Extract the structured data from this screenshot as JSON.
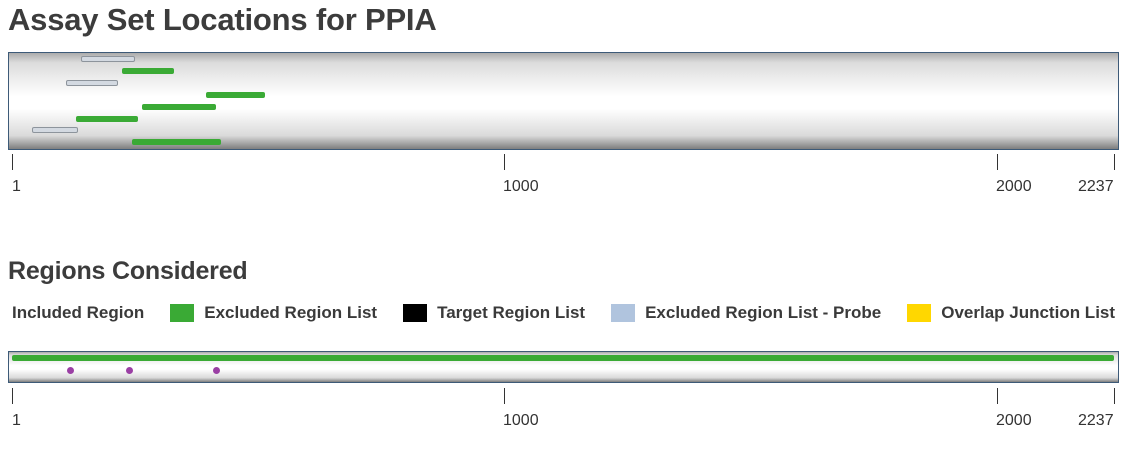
{
  "title": "Assay Set Locations for PPIA",
  "regions_title": "Regions Considered",
  "legend": [
    {
      "label": "Included Region",
      "color": "#3aaa35"
    },
    {
      "label": "Excluded Region List",
      "color": "#000000"
    },
    {
      "label": "Target Region List",
      "color": "#b0c4de"
    },
    {
      "label": "Excluded Region List - Probe",
      "color": "#ffd700"
    },
    {
      "label": "Overlap Junction List",
      "color": "#a03ca8"
    }
  ],
  "chart_data": [
    {
      "type": "bar",
      "title": "Assay Set Locations for PPIA",
      "xlim": [
        1,
        2237
      ],
      "ticks": [
        1,
        1000,
        2000,
        2237
      ],
      "tick_labels": [
        "1",
        "1000",
        "2000",
        "2237"
      ],
      "series": [
        {
          "start": 140,
          "end": 250,
          "color": "#d3d9e1"
        },
        {
          "start": 225,
          "end": 330,
          "color": "#3aaa35"
        },
        {
          "start": 110,
          "end": 215,
          "color": "#d3d9e1"
        },
        {
          "start": 395,
          "end": 515,
          "color": "#3aaa35"
        },
        {
          "start": 265,
          "end": 415,
          "color": "#3aaa35"
        },
        {
          "start": 130,
          "end": 255,
          "color": "#3aaa35"
        },
        {
          "start": 42,
          "end": 135,
          "color": "#d3d9e1"
        },
        {
          "start": 245,
          "end": 425,
          "color": "#3aaa35"
        }
      ]
    },
    {
      "type": "bar",
      "title": "Regions Considered",
      "xlim": [
        1,
        2237
      ],
      "ticks": [
        1,
        1000,
        2000,
        2237
      ],
      "tick_labels": [
        "1",
        "1000",
        "2000",
        "2237"
      ],
      "included_region": {
        "start": 1,
        "end": 2237,
        "color": "#3aaa35"
      },
      "overlap_junctions": [
        120,
        240,
        415
      ]
    }
  ]
}
